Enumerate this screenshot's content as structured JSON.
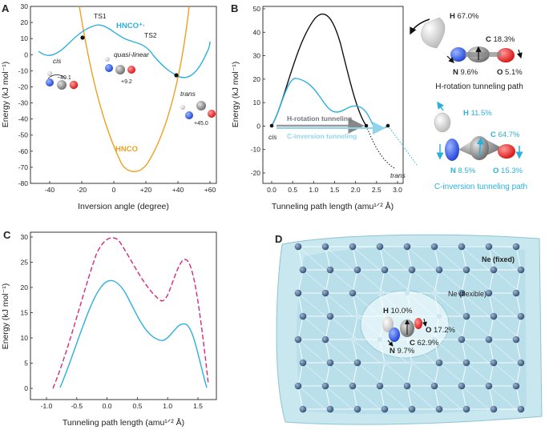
{
  "panels": {
    "A": {
      "label": "A"
    },
    "B": {
      "label": "B"
    },
    "C": {
      "label": "C"
    },
    "D": {
      "label": "D"
    }
  },
  "panelA": {
    "ylabel": "Energy (kJ mol⁻¹)",
    "xlabel": "Inversion angle (degree)",
    "yticks": [
      "30",
      "20",
      "10",
      "0",
      "-10",
      "-20",
      "-30",
      "-40",
      "-50",
      "-60",
      "-70",
      "-80"
    ],
    "xticks": [
      "-40",
      "-20",
      "0",
      "+20",
      "+40",
      "+60"
    ],
    "ts1": "TS1",
    "ts2": "TS2",
    "cation_label": "HNCO⁺·",
    "neutral_label": "HNCO",
    "cis": "cis",
    "quasi": "quasi-linear",
    "trans": "trans",
    "cis_angle": "−40.1",
    "quasi_angle": "+9.2",
    "trans_angle": "+45.0"
  },
  "panelB": {
    "ylabel": "Energy (kJ mol⁻¹)",
    "xlabel": "Tunneling path length (amu¹ᐟ² Å)",
    "yticks": [
      "50",
      "40",
      "30",
      "20",
      "10",
      "0",
      "-10",
      "-20"
    ],
    "xticks": [
      "0.0",
      "0.5",
      "1.0",
      "1.5",
      "2.0",
      "2.5",
      "3.0"
    ],
    "h_rot": "H-rotation tunneling",
    "c_inv": "C-inversion tunneling",
    "cis": "cis",
    "trans": "trans",
    "h_path": {
      "H": "67.0%",
      "C": "18.3%",
      "N": "9.6%",
      "O": "5.1%",
      "title": "H-rotation tunneling path"
    },
    "c_path": {
      "H": "11.5%",
      "C": "64.7%",
      "N": "8.5%",
      "O": "15.3%",
      "title": "C-inversion tunneling path"
    }
  },
  "panelC": {
    "ylabel": "Energy (kJ mol⁻¹)",
    "xlabel": "Tunneling path length (amu¹ᐟ² Å)",
    "yticks": [
      "30",
      "25",
      "20",
      "15",
      "10",
      "5",
      "0"
    ],
    "xticks": [
      "-1.0",
      "-0.5",
      "0.0",
      "0.5",
      "1.0",
      "1.5"
    ]
  },
  "panelD": {
    "ne_fixed": "Ne (fixed)",
    "ne_flexible": "Ne (flexible)",
    "H": "10.0%",
    "O": "17.2%",
    "N": "9.7%",
    "C": "62.9%"
  },
  "atoms": {
    "H": "H",
    "N": "N",
    "C": "C",
    "O": "O"
  },
  "colors": {
    "cation": "#2bb0dc",
    "neutral": "#f0a020",
    "black": "#111111",
    "magenta": "#d8287a",
    "cage": "#a8d8e4"
  }
}
